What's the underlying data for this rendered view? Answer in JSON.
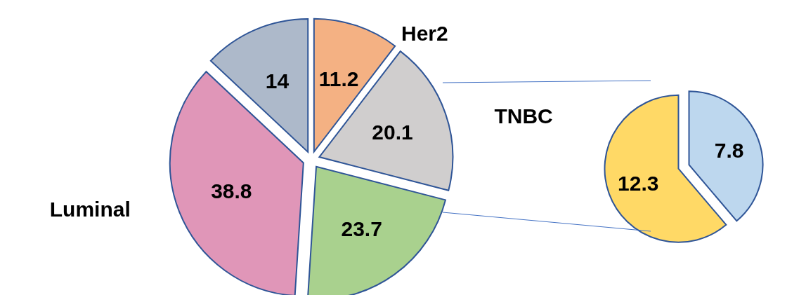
{
  "chart_data": [
    {
      "type": "pie",
      "categories": [
        "Her2",
        "TNBC",
        null,
        "Luminal",
        null
      ],
      "values": [
        11.2,
        20.1,
        23.7,
        38.8,
        14
      ],
      "colors": [
        "#f4b183",
        "#d0cece",
        "#a9d18e",
        "#e096b8",
        "#adb9ca"
      ],
      "data_labels": true
    },
    {
      "type": "pie",
      "categories": [
        null,
        null
      ],
      "values": [
        7.8,
        12.3
      ],
      "colors": [
        "#bdd7ee",
        "#ffd966"
      ],
      "data_labels": true
    }
  ]
}
